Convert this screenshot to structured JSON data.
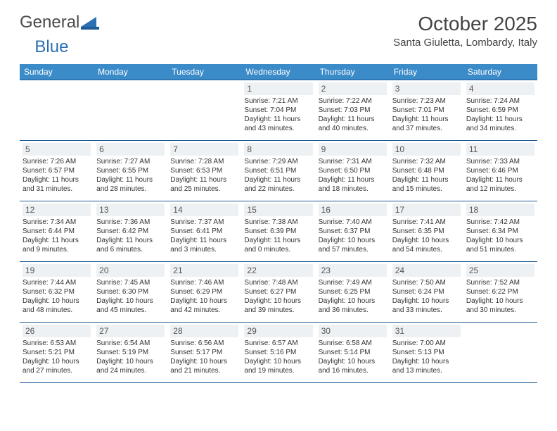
{
  "logo": {
    "part1": "General",
    "part2": "Blue"
  },
  "title": "October 2025",
  "location": "Santa Giuletta, Lombardy, Italy",
  "colors": {
    "header_bg": "#3b8bc9",
    "row_border": "#1d5a96",
    "daynum_bg": "#eef1f3",
    "text": "#333333",
    "logo_gray": "#4a4a4a",
    "logo_blue": "#2c6fb3"
  },
  "fonts": {
    "month_title_size": 28,
    "location_size": 15,
    "weekday_size": 12,
    "daynum_size": 12,
    "body_size": 10
  },
  "weekdays": [
    "Sunday",
    "Monday",
    "Tuesday",
    "Wednesday",
    "Thursday",
    "Friday",
    "Saturday"
  ],
  "weeks": [
    [
      null,
      null,
      null,
      {
        "n": "1",
        "sr": "7:21 AM",
        "ss": "7:04 PM",
        "dl": "11 hours and 43 minutes."
      },
      {
        "n": "2",
        "sr": "7:22 AM",
        "ss": "7:03 PM",
        "dl": "11 hours and 40 minutes."
      },
      {
        "n": "3",
        "sr": "7:23 AM",
        "ss": "7:01 PM",
        "dl": "11 hours and 37 minutes."
      },
      {
        "n": "4",
        "sr": "7:24 AM",
        "ss": "6:59 PM",
        "dl": "11 hours and 34 minutes."
      }
    ],
    [
      {
        "n": "5",
        "sr": "7:26 AM",
        "ss": "6:57 PM",
        "dl": "11 hours and 31 minutes."
      },
      {
        "n": "6",
        "sr": "7:27 AM",
        "ss": "6:55 PM",
        "dl": "11 hours and 28 minutes."
      },
      {
        "n": "7",
        "sr": "7:28 AM",
        "ss": "6:53 PM",
        "dl": "11 hours and 25 minutes."
      },
      {
        "n": "8",
        "sr": "7:29 AM",
        "ss": "6:51 PM",
        "dl": "11 hours and 22 minutes."
      },
      {
        "n": "9",
        "sr": "7:31 AM",
        "ss": "6:50 PM",
        "dl": "11 hours and 18 minutes."
      },
      {
        "n": "10",
        "sr": "7:32 AM",
        "ss": "6:48 PM",
        "dl": "11 hours and 15 minutes."
      },
      {
        "n": "11",
        "sr": "7:33 AM",
        "ss": "6:46 PM",
        "dl": "11 hours and 12 minutes."
      }
    ],
    [
      {
        "n": "12",
        "sr": "7:34 AM",
        "ss": "6:44 PM",
        "dl": "11 hours and 9 minutes."
      },
      {
        "n": "13",
        "sr": "7:36 AM",
        "ss": "6:42 PM",
        "dl": "11 hours and 6 minutes."
      },
      {
        "n": "14",
        "sr": "7:37 AM",
        "ss": "6:41 PM",
        "dl": "11 hours and 3 minutes."
      },
      {
        "n": "15",
        "sr": "7:38 AM",
        "ss": "6:39 PM",
        "dl": "11 hours and 0 minutes."
      },
      {
        "n": "16",
        "sr": "7:40 AM",
        "ss": "6:37 PM",
        "dl": "10 hours and 57 minutes."
      },
      {
        "n": "17",
        "sr": "7:41 AM",
        "ss": "6:35 PM",
        "dl": "10 hours and 54 minutes."
      },
      {
        "n": "18",
        "sr": "7:42 AM",
        "ss": "6:34 PM",
        "dl": "10 hours and 51 minutes."
      }
    ],
    [
      {
        "n": "19",
        "sr": "7:44 AM",
        "ss": "6:32 PM",
        "dl": "10 hours and 48 minutes."
      },
      {
        "n": "20",
        "sr": "7:45 AM",
        "ss": "6:30 PM",
        "dl": "10 hours and 45 minutes."
      },
      {
        "n": "21",
        "sr": "7:46 AM",
        "ss": "6:29 PM",
        "dl": "10 hours and 42 minutes."
      },
      {
        "n": "22",
        "sr": "7:48 AM",
        "ss": "6:27 PM",
        "dl": "10 hours and 39 minutes."
      },
      {
        "n": "23",
        "sr": "7:49 AM",
        "ss": "6:25 PM",
        "dl": "10 hours and 36 minutes."
      },
      {
        "n": "24",
        "sr": "7:50 AM",
        "ss": "6:24 PM",
        "dl": "10 hours and 33 minutes."
      },
      {
        "n": "25",
        "sr": "7:52 AM",
        "ss": "6:22 PM",
        "dl": "10 hours and 30 minutes."
      }
    ],
    [
      {
        "n": "26",
        "sr": "6:53 AM",
        "ss": "5:21 PM",
        "dl": "10 hours and 27 minutes."
      },
      {
        "n": "27",
        "sr": "6:54 AM",
        "ss": "5:19 PM",
        "dl": "10 hours and 24 minutes."
      },
      {
        "n": "28",
        "sr": "6:56 AM",
        "ss": "5:17 PM",
        "dl": "10 hours and 21 minutes."
      },
      {
        "n": "29",
        "sr": "6:57 AM",
        "ss": "5:16 PM",
        "dl": "10 hours and 19 minutes."
      },
      {
        "n": "30",
        "sr": "6:58 AM",
        "ss": "5:14 PM",
        "dl": "10 hours and 16 minutes."
      },
      {
        "n": "31",
        "sr": "7:00 AM",
        "ss": "5:13 PM",
        "dl": "10 hours and 13 minutes."
      },
      null
    ]
  ],
  "labels": {
    "sunrise": "Sunrise: ",
    "sunset": "Sunset: ",
    "daylight": "Daylight: "
  }
}
